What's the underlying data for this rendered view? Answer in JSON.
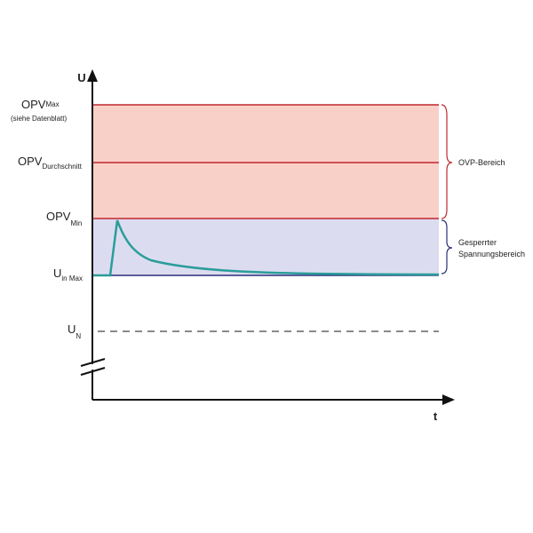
{
  "axes": {
    "y_label": "U",
    "x_label": "t"
  },
  "levels": [
    {
      "main": "OPV",
      "sub": "Max",
      "note": "(siehe Datenblatt)"
    },
    {
      "main": "OPV",
      "sub": "Durchschnitt"
    },
    {
      "main": "OPV",
      "sub": "Min"
    },
    {
      "main": "U",
      "sub": "in Max"
    },
    {
      "main": "U",
      "sub": "N"
    }
  ],
  "ranges": [
    {
      "lines": [
        "OVP-Bereich"
      ]
    },
    {
      "lines": [
        "Gesperrter",
        "Spannungsbereich"
      ]
    }
  ]
}
